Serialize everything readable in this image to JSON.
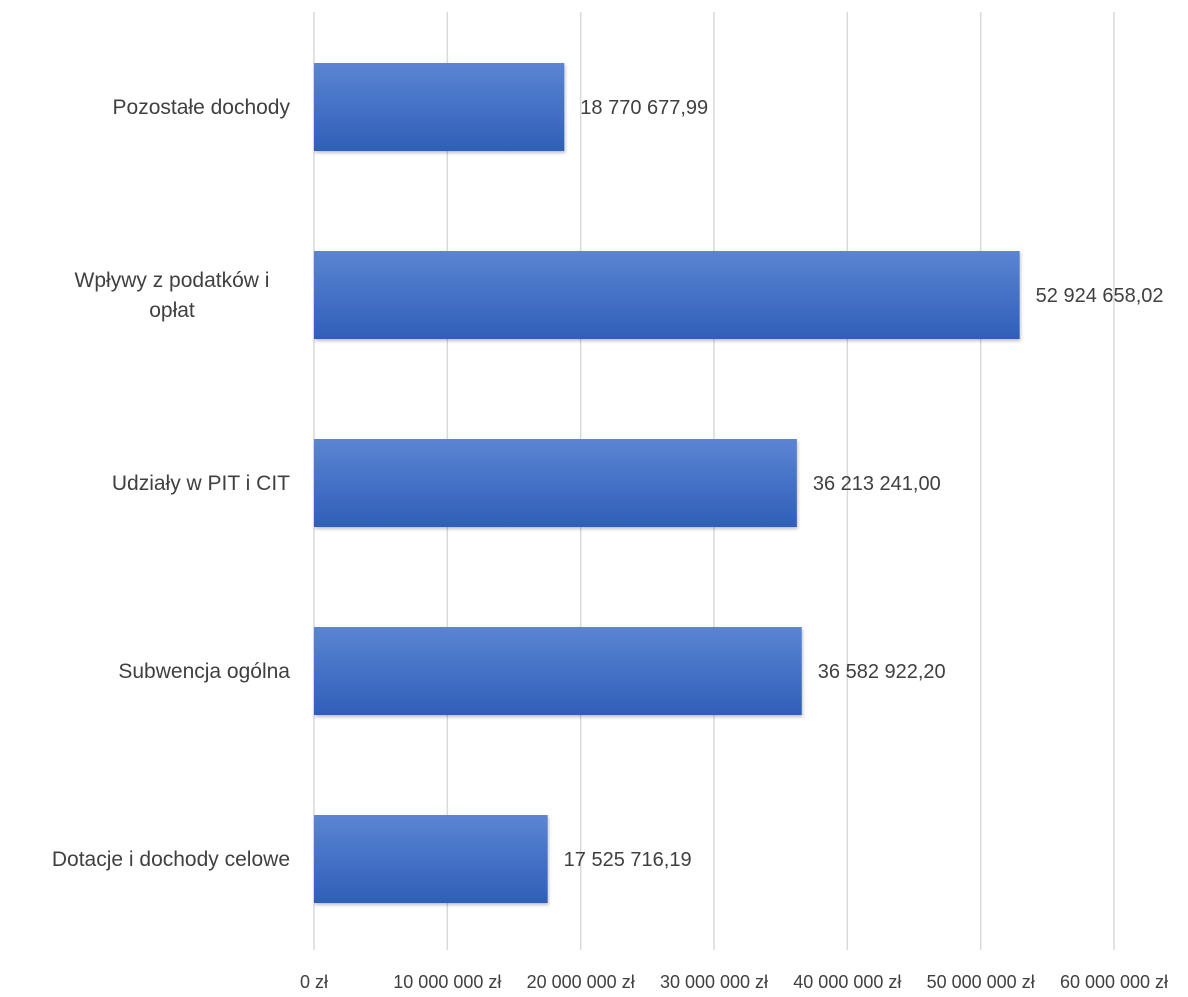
{
  "chart_data": {
    "type": "bar",
    "orientation": "horizontal",
    "title": "",
    "xlabel": "",
    "ylabel": "",
    "categories": [
      "Pozostałe dochody",
      "Wpływy z podatków i opłat",
      "Udziały w PIT i CIT",
      "Subwencja ogólna",
      "Dotacje i dochody celowe"
    ],
    "category_lines": [
      [
        "Pozostałe dochody"
      ],
      [
        "Wpływy z podatków i",
        "opłat"
      ],
      [
        "Udziały w PIT i CIT"
      ],
      [
        "Subwencja ogólna"
      ],
      [
        "Dotacje i dochody celowe"
      ]
    ],
    "values": [
      18770677.99,
      52924658.02,
      36213241.0,
      36582922.2,
      17525716.19
    ],
    "value_labels": [
      "18 770 677,99",
      "52 924 658,02",
      "36 213 241,00",
      "36 582 922,20",
      "17 525 716,19"
    ],
    "xlim": [
      0,
      60000000
    ],
    "x_ticks": [
      0,
      10000000,
      20000000,
      30000000,
      40000000,
      50000000,
      60000000
    ],
    "x_tick_labels": [
      "0 zł",
      "10 000 000 zł",
      "20 000 000 zł",
      "30 000 000 zł",
      "40 000 000 zł",
      "50 000 000 zł",
      "60 000 000 zł"
    ],
    "grid": true,
    "legend": "none",
    "bar_color": "#4472c4"
  }
}
